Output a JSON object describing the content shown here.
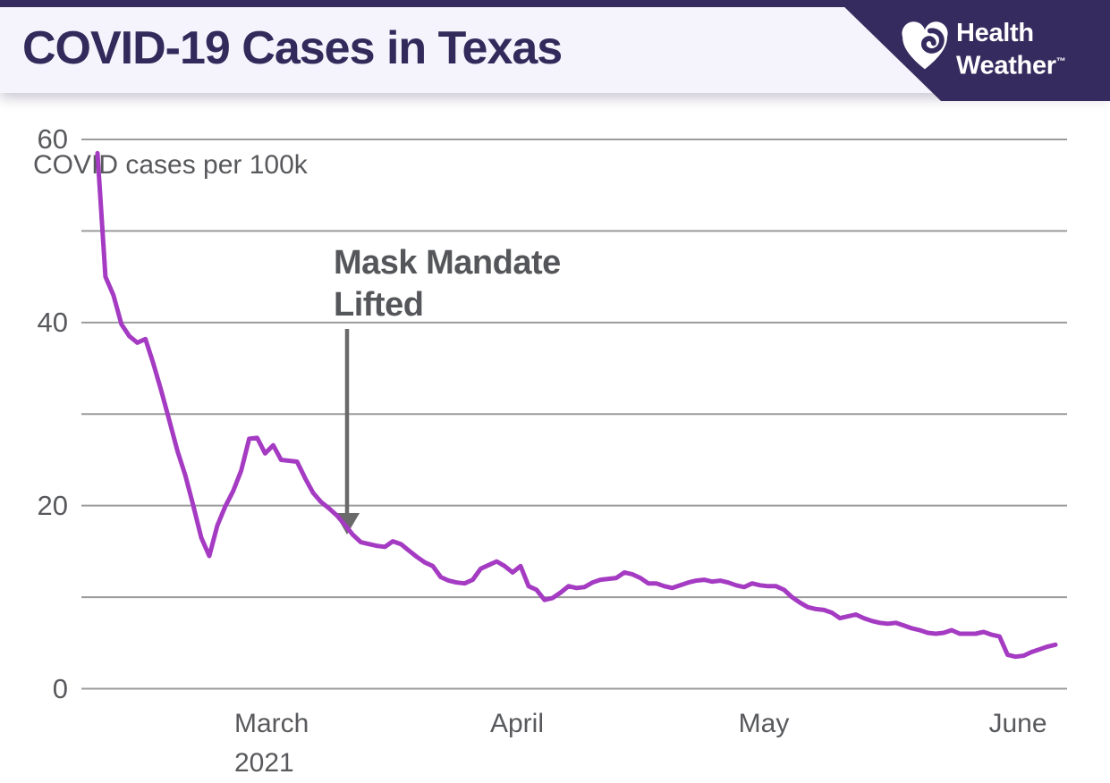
{
  "header": {
    "title": "COVID-19 Cases in Texas",
    "logo": {
      "line1": "Health",
      "line2": "Weather",
      "trademark": "™"
    }
  },
  "chart_data": {
    "type": "line",
    "title": "COVID-19 Cases in Texas",
    "ylabel": "COVID cases per 100k",
    "y_axis": {
      "min": 0,
      "max": 60,
      "gridline_interval": 10,
      "tick_values": [
        60,
        40,
        20,
        0
      ],
      "tick_labels": [
        "60",
        "40",
        "20",
        "0"
      ],
      "grid": "horizontal"
    },
    "x_axis": {
      "tick_labels": [
        "March",
        "April",
        "May",
        "June"
      ],
      "year_label": "2021",
      "start_date": "2021-02-07",
      "end_date": "2021-06-07",
      "frequency": "daily"
    },
    "annotation": {
      "text_lines": [
        "Mask Mandate",
        "Lifted"
      ],
      "arrow_tip": {
        "date": "2021-03-10",
        "value": 17.8
      }
    },
    "legend": "none",
    "series": [
      {
        "name": "COVID cases per 100k",
        "color": "#a43bc2",
        "values": [
          58.5,
          45.0,
          43.0,
          39.8,
          38.5,
          37.8,
          38.2,
          35.5,
          32.5,
          29.3,
          26.0,
          23.3,
          20.0,
          16.5,
          14.5,
          17.8,
          19.9,
          21.6,
          23.8,
          27.3,
          27.4,
          25.7,
          26.6,
          25.0,
          24.9,
          24.8,
          23.0,
          21.4,
          20.4,
          19.7,
          18.9,
          17.9,
          16.8,
          16.0,
          15.8,
          15.6,
          15.5,
          16.1,
          15.8,
          15.1,
          14.4,
          13.8,
          13.4,
          12.2,
          11.8,
          11.6,
          11.5,
          11.9,
          13.1,
          13.5,
          13.9,
          13.4,
          12.7,
          13.4,
          11.2,
          10.8,
          9.7,
          9.9,
          10.5,
          11.2,
          11.0,
          11.1,
          11.6,
          11.9,
          12.0,
          12.1,
          12.7,
          12.5,
          12.1,
          11.5,
          11.5,
          11.2,
          11.0,
          11.3,
          11.6,
          11.8,
          11.9,
          11.7,
          11.8,
          11.6,
          11.3,
          11.1,
          11.5,
          11.3,
          11.2,
          11.2,
          10.8,
          10.0,
          9.4,
          8.9,
          8.7,
          8.6,
          8.3,
          7.7,
          7.9,
          8.1,
          7.7,
          7.4,
          7.2,
          7.1,
          7.2,
          6.9,
          6.6,
          6.4,
          6.1,
          6.0,
          6.1,
          6.4,
          6.0,
          6.0,
          6.0,
          6.2,
          5.9,
          5.7,
          3.7,
          3.5,
          3.6,
          4.0,
          4.3,
          4.6,
          4.8
        ]
      }
    ]
  },
  "colors": {
    "line_purple": "#a43bc2",
    "header_strip": "#362b5e",
    "badge_bg": "#362b5e",
    "header_band": "#f5f3fb",
    "title_text": "#332a5c",
    "gridline": "#9b9b9b",
    "axis_text": "#58595c",
    "annotation_text": "#55565a",
    "arrow": "#6a6a6a",
    "background": "#ffffff"
  }
}
